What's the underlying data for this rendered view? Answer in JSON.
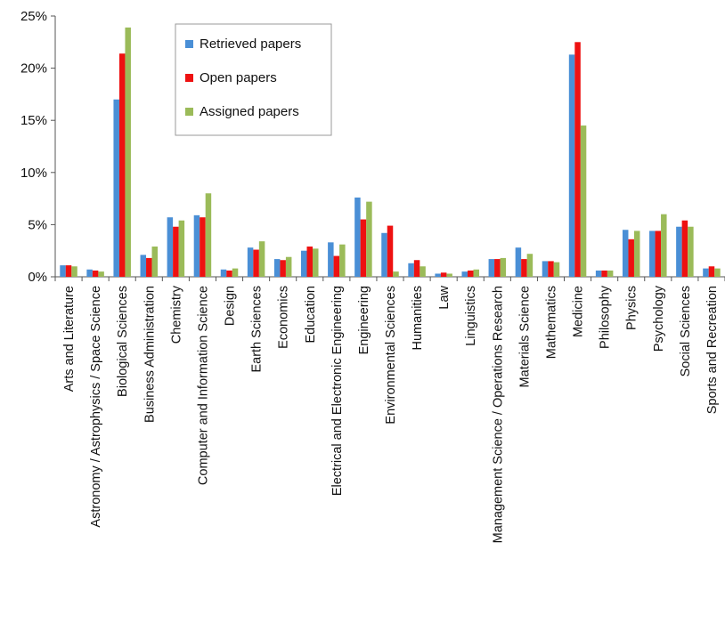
{
  "chart_data": {
    "type": "bar",
    "categories": [
      "Arts and Literature",
      "Astronomy / Astrophysics / Space Science",
      "Biological Sciences",
      "Business Administration",
      "Chemistry",
      "Computer and Information Science",
      "Design",
      "Earth Sciences",
      "Economics",
      "Education",
      "Electrical and Electronic Engineering",
      "Engineering",
      "Environmental Sciences",
      "Humanities",
      "Law",
      "Linguistics",
      "Management Science / Operations Research",
      "Materials Science",
      "Mathematics",
      "Medicine",
      "Philosophy",
      "Physics",
      "Psychology",
      "Social Sciences",
      "Sports and Recreation"
    ],
    "series": [
      {
        "name": "Retrieved papers",
        "color": "#4a8fd6",
        "values": [
          1.1,
          0.7,
          17.0,
          2.1,
          5.7,
          5.9,
          0.7,
          2.8,
          1.7,
          2.5,
          3.3,
          7.6,
          4.2,
          1.3,
          0.3,
          0.5,
          1.7,
          2.8,
          1.5,
          21.3,
          0.6,
          4.5,
          4.4,
          4.8,
          0.8
        ]
      },
      {
        "name": "Open papers",
        "color": "#ee1111",
        "values": [
          1.1,
          0.6,
          21.4,
          1.8,
          4.8,
          5.7,
          0.6,
          2.6,
          1.6,
          2.9,
          2.0,
          5.5,
          4.9,
          1.6,
          0.4,
          0.6,
          1.7,
          1.7,
          1.5,
          22.5,
          0.6,
          3.6,
          4.4,
          5.4,
          1.0
        ]
      },
      {
        "name": "Assigned papers",
        "color": "#9bbb59",
        "values": [
          1.0,
          0.5,
          23.9,
          2.9,
          5.4,
          8.0,
          0.8,
          3.4,
          1.9,
          2.7,
          3.1,
          7.2,
          0.5,
          1.0,
          0.3,
          0.7,
          1.8,
          2.2,
          1.4,
          14.5,
          0.6,
          4.4,
          6.0,
          4.8,
          0.8
        ]
      }
    ],
    "title": "",
    "xlabel": "",
    "ylabel": "",
    "ylim": [
      0,
      25
    ],
    "yticks": [
      "0%",
      "5%",
      "10%",
      "15%",
      "20%",
      "25%"
    ],
    "grid": false,
    "legend_position": "top-center"
  }
}
